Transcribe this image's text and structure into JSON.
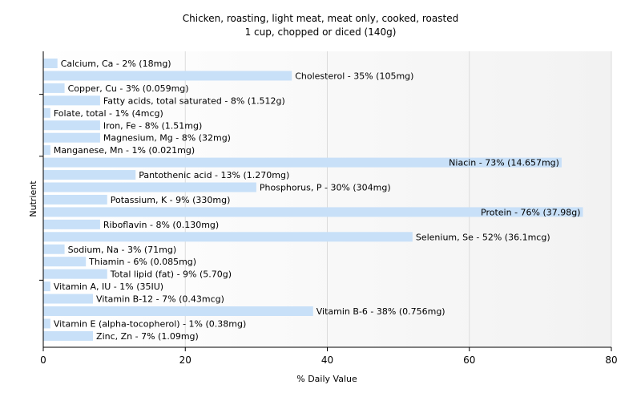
{
  "chart_data": {
    "type": "bar",
    "orientation": "horizontal",
    "title": "Chicken, roasting, light meat, meat only, cooked, roasted",
    "subtitle": "1 cup, chopped or diced (140g)",
    "xlabel": "% Daily Value",
    "ylabel": "Nutrient",
    "xlim": [
      0,
      80
    ],
    "xticks": [
      0,
      20,
      40,
      60,
      80
    ],
    "grid": true,
    "bar_color": "#c8e0f8",
    "items": [
      {
        "label": "Calcium, Ca - 2% (18mg)",
        "value": 2
      },
      {
        "label": "Cholesterol - 35% (105mg)",
        "value": 35
      },
      {
        "label": "Copper, Cu - 3% (0.059mg)",
        "value": 3
      },
      {
        "label": "Fatty acids, total saturated - 8% (1.512g)",
        "value": 8
      },
      {
        "label": "Folate, total - 1% (4mcg)",
        "value": 1
      },
      {
        "label": "Iron, Fe - 8% (1.51mg)",
        "value": 8
      },
      {
        "label": "Magnesium, Mg - 8% (32mg)",
        "value": 8
      },
      {
        "label": "Manganese, Mn - 1% (0.021mg)",
        "value": 1
      },
      {
        "label": "Niacin - 73% (14.657mg)",
        "value": 73
      },
      {
        "label": "Pantothenic acid - 13% (1.270mg)",
        "value": 13
      },
      {
        "label": "Phosphorus, P - 30% (304mg)",
        "value": 30
      },
      {
        "label": "Potassium, K - 9% (330mg)",
        "value": 9
      },
      {
        "label": "Protein - 76% (37.98g)",
        "value": 76
      },
      {
        "label": "Riboflavin - 8% (0.130mg)",
        "value": 8
      },
      {
        "label": "Selenium, Se - 52% (36.1mcg)",
        "value": 52
      },
      {
        "label": "Sodium, Na - 3% (71mg)",
        "value": 3
      },
      {
        "label": "Thiamin - 6% (0.085mg)",
        "value": 6
      },
      {
        "label": "Total lipid (fat) - 9% (5.70g)",
        "value": 9
      },
      {
        "label": "Vitamin A, IU - 1% (35IU)",
        "value": 1
      },
      {
        "label": "Vitamin B-12 - 7% (0.43mcg)",
        "value": 7
      },
      {
        "label": "Vitamin B-6 - 38% (0.756mg)",
        "value": 38
      },
      {
        "label": "Vitamin E (alpha-tocopherol) - 1% (0.38mg)",
        "value": 1
      },
      {
        "label": "Zinc, Zn - 7% (1.09mg)",
        "value": 7
      }
    ]
  }
}
